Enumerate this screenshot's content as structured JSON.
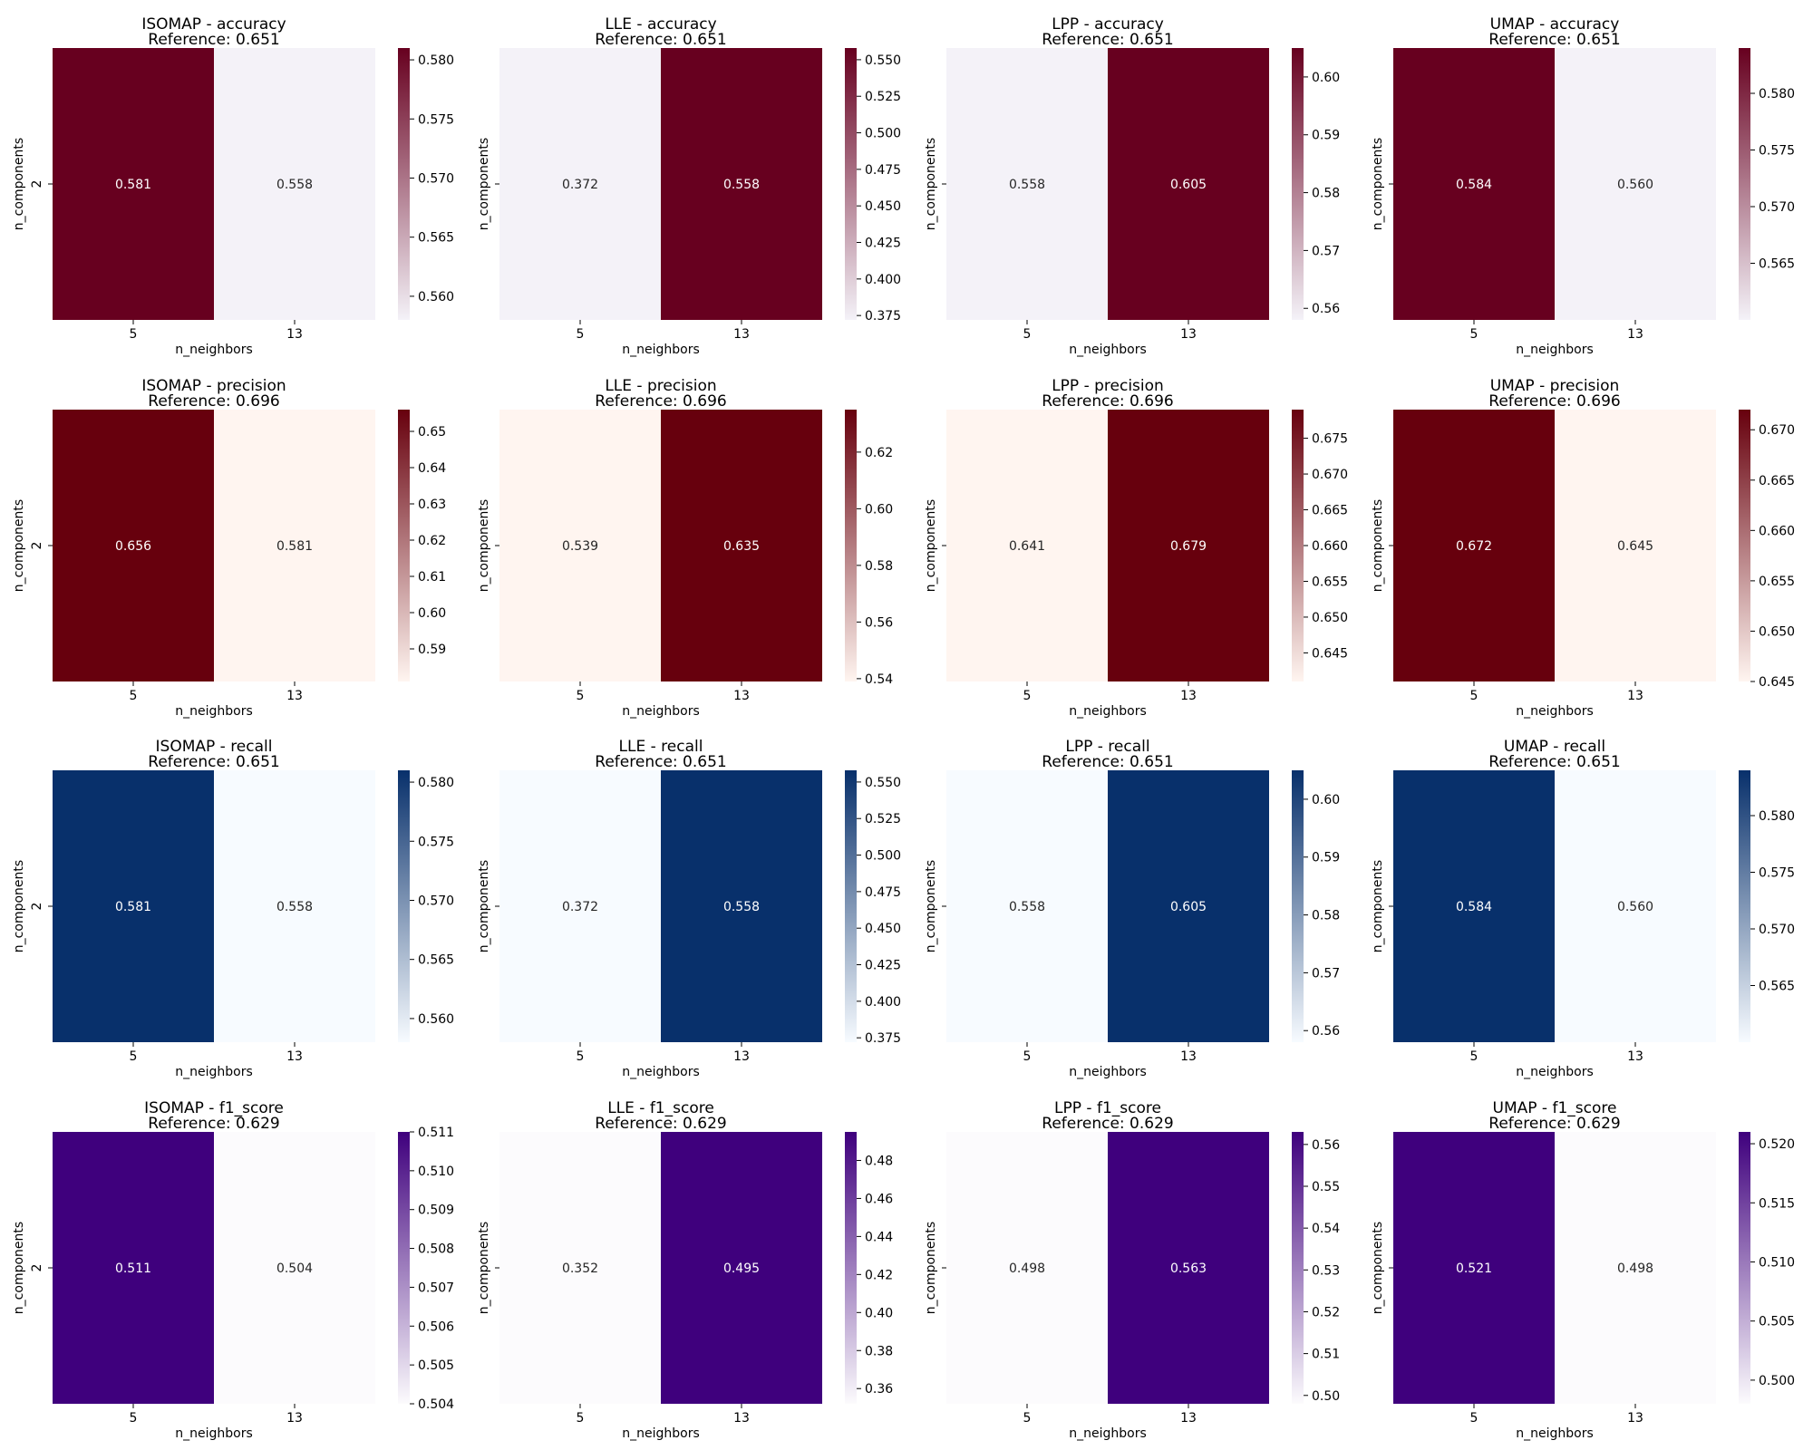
{
  "chart_data": [
    {
      "type": "heatmap",
      "method": "ISOMAP",
      "metric": "accuracy",
      "title": "ISOMAP - accuracy",
      "subtitle": "Reference: 0.651",
      "xlabel": "n_neighbors",
      "ylabel": "n_components",
      "x_categories": [
        "5",
        "13"
      ],
      "y_categories": [
        "2"
      ],
      "values": [
        [
          0.581,
          0.558
        ]
      ],
      "cell_labels": [
        "0.581",
        "0.558"
      ],
      "colormap": "RdPu",
      "low_color": "#f4f2f8",
      "high_color": "#67001f",
      "colorbar": {
        "ticks": [
          "0.560",
          "0.565",
          "0.570",
          "0.575",
          "0.580"
        ]
      }
    },
    {
      "type": "heatmap",
      "method": "LLE",
      "metric": "accuracy",
      "title": "LLE - accuracy",
      "subtitle": "Reference: 0.651",
      "xlabel": "n_neighbors",
      "ylabel": "n_components",
      "x_categories": [
        "5",
        "13"
      ],
      "y_categories": [
        ""
      ],
      "values": [
        [
          0.372,
          0.558
        ]
      ],
      "cell_labels": [
        "0.372",
        "0.558"
      ],
      "colormap": "RdPu",
      "low_color": "#f4f2f8",
      "high_color": "#67001f",
      "colorbar": {
        "ticks": [
          "0.375",
          "0.400",
          "0.425",
          "0.450",
          "0.475",
          "0.500",
          "0.525",
          "0.550"
        ]
      }
    },
    {
      "type": "heatmap",
      "method": "LPP",
      "metric": "accuracy",
      "title": "LPP - accuracy",
      "subtitle": "Reference: 0.651",
      "xlabel": "n_neighbors",
      "ylabel": "n_components",
      "x_categories": [
        "5",
        "13"
      ],
      "y_categories": [
        ""
      ],
      "values": [
        [
          0.558,
          0.605
        ]
      ],
      "cell_labels": [
        "0.558",
        "0.605"
      ],
      "colormap": "RdPu",
      "low_color": "#f4f2f8",
      "high_color": "#67001f",
      "colorbar": {
        "ticks": [
          "0.56",
          "0.57",
          "0.58",
          "0.59",
          "0.60"
        ]
      }
    },
    {
      "type": "heatmap",
      "method": "UMAP",
      "metric": "accuracy",
      "title": "UMAP - accuracy",
      "subtitle": "Reference: 0.651",
      "xlabel": "n_neighbors",
      "ylabel": "n_components",
      "x_categories": [
        "5",
        "13"
      ],
      "y_categories": [
        ""
      ],
      "values": [
        [
          0.584,
          0.56
        ]
      ],
      "cell_labels": [
        "0.584",
        "0.560"
      ],
      "colormap": "RdPu",
      "low_color": "#f4f2f8",
      "high_color": "#67001f",
      "colorbar": {
        "ticks": [
          "0.565",
          "0.570",
          "0.575",
          "0.580"
        ]
      }
    },
    {
      "type": "heatmap",
      "method": "ISOMAP",
      "metric": "precision",
      "title": "ISOMAP - precision",
      "subtitle": "Reference: 0.696",
      "xlabel": "n_neighbors",
      "ylabel": "n_components",
      "x_categories": [
        "5",
        "13"
      ],
      "y_categories": [
        "2"
      ],
      "values": [
        [
          0.656,
          0.581
        ]
      ],
      "cell_labels": [
        "0.656",
        "0.581"
      ],
      "colormap": "Reds",
      "low_color": "#fff5f0",
      "high_color": "#67000d",
      "colorbar": {
        "ticks": [
          "0.59",
          "0.60",
          "0.61",
          "0.62",
          "0.63",
          "0.64",
          "0.65"
        ]
      }
    },
    {
      "type": "heatmap",
      "method": "LLE",
      "metric": "precision",
      "title": "LLE - precision",
      "subtitle": "Reference: 0.696",
      "xlabel": "n_neighbors",
      "ylabel": "n_components",
      "x_categories": [
        "5",
        "13"
      ],
      "y_categories": [
        ""
      ],
      "values": [
        [
          0.539,
          0.635
        ]
      ],
      "cell_labels": [
        "0.539",
        "0.635"
      ],
      "colormap": "Reds",
      "low_color": "#fff5f0",
      "high_color": "#67000d",
      "colorbar": {
        "ticks": [
          "0.54",
          "0.56",
          "0.58",
          "0.60",
          "0.62"
        ]
      }
    },
    {
      "type": "heatmap",
      "method": "LPP",
      "metric": "precision",
      "title": "LPP - precision",
      "subtitle": "Reference: 0.696",
      "xlabel": "n_neighbors",
      "ylabel": "n_components",
      "x_categories": [
        "5",
        "13"
      ],
      "y_categories": [
        ""
      ],
      "values": [
        [
          0.641,
          0.679
        ]
      ],
      "cell_labels": [
        "0.641",
        "0.679"
      ],
      "colormap": "Reds",
      "low_color": "#fff5f0",
      "high_color": "#67000d",
      "colorbar": {
        "ticks": [
          "0.645",
          "0.650",
          "0.655",
          "0.660",
          "0.665",
          "0.670",
          "0.675"
        ]
      }
    },
    {
      "type": "heatmap",
      "method": "UMAP",
      "metric": "precision",
      "title": "UMAP - precision",
      "subtitle": "Reference: 0.696",
      "xlabel": "n_neighbors",
      "ylabel": "n_components",
      "x_categories": [
        "5",
        "13"
      ],
      "y_categories": [
        ""
      ],
      "values": [
        [
          0.672,
          0.645
        ]
      ],
      "cell_labels": [
        "0.672",
        "0.645"
      ],
      "colormap": "Reds",
      "low_color": "#fff5f0",
      "high_color": "#67000d",
      "colorbar": {
        "ticks": [
          "0.645",
          "0.650",
          "0.655",
          "0.660",
          "0.665",
          "0.670"
        ]
      }
    },
    {
      "type": "heatmap",
      "method": "ISOMAP",
      "metric": "recall",
      "title": "ISOMAP - recall",
      "subtitle": "Reference: 0.651",
      "xlabel": "n_neighbors",
      "ylabel": "n_components",
      "x_categories": [
        "5",
        "13"
      ],
      "y_categories": [
        "2"
      ],
      "values": [
        [
          0.581,
          0.558
        ]
      ],
      "cell_labels": [
        "0.581",
        "0.558"
      ],
      "colormap": "Blues",
      "low_color": "#f7fbff",
      "high_color": "#08306b",
      "colorbar": {
        "ticks": [
          "0.560",
          "0.565",
          "0.570",
          "0.575",
          "0.580"
        ]
      }
    },
    {
      "type": "heatmap",
      "method": "LLE",
      "metric": "recall",
      "title": "LLE - recall",
      "subtitle": "Reference: 0.651",
      "xlabel": "n_neighbors",
      "ylabel": "n_components",
      "x_categories": [
        "5",
        "13"
      ],
      "y_categories": [
        ""
      ],
      "values": [
        [
          0.372,
          0.558
        ]
      ],
      "cell_labels": [
        "0.372",
        "0.558"
      ],
      "colormap": "Blues",
      "low_color": "#f7fbff",
      "high_color": "#08306b",
      "colorbar": {
        "ticks": [
          "0.375",
          "0.400",
          "0.425",
          "0.450",
          "0.475",
          "0.500",
          "0.525",
          "0.550"
        ]
      }
    },
    {
      "type": "heatmap",
      "method": "LPP",
      "metric": "recall",
      "title": "LPP - recall",
      "subtitle": "Reference: 0.651",
      "xlabel": "n_neighbors",
      "ylabel": "n_components",
      "x_categories": [
        "5",
        "13"
      ],
      "y_categories": [
        ""
      ],
      "values": [
        [
          0.558,
          0.605
        ]
      ],
      "cell_labels": [
        "0.558",
        "0.605"
      ],
      "colormap": "Blues",
      "low_color": "#f7fbff",
      "high_color": "#08306b",
      "colorbar": {
        "ticks": [
          "0.56",
          "0.57",
          "0.58",
          "0.59",
          "0.60"
        ]
      }
    },
    {
      "type": "heatmap",
      "method": "UMAP",
      "metric": "recall",
      "title": "UMAP - recall",
      "subtitle": "Reference: 0.651",
      "xlabel": "n_neighbors",
      "ylabel": "n_components",
      "x_categories": [
        "5",
        "13"
      ],
      "y_categories": [
        ""
      ],
      "values": [
        [
          0.584,
          0.56
        ]
      ],
      "cell_labels": [
        "0.584",
        "0.560"
      ],
      "colormap": "Blues",
      "low_color": "#f7fbff",
      "high_color": "#08306b",
      "colorbar": {
        "ticks": [
          "0.565",
          "0.570",
          "0.575",
          "0.580"
        ]
      }
    },
    {
      "type": "heatmap",
      "method": "ISOMAP",
      "metric": "f1_score",
      "title": "ISOMAP - f1_score",
      "subtitle": "Reference: 0.629",
      "xlabel": "n_neighbors",
      "ylabel": "n_components",
      "x_categories": [
        "5",
        "13"
      ],
      "y_categories": [
        "2"
      ],
      "values": [
        [
          0.511,
          0.504
        ]
      ],
      "cell_labels": [
        "0.511",
        "0.504"
      ],
      "colormap": "Purples",
      "low_color": "#fcfbfd",
      "high_color": "#3f007d",
      "colorbar": {
        "ticks": [
          "0.504",
          "0.505",
          "0.506",
          "0.507",
          "0.508",
          "0.509",
          "0.510",
          "0.511"
        ]
      }
    },
    {
      "type": "heatmap",
      "method": "LLE",
      "metric": "f1_score",
      "title": "LLE - f1_score",
      "subtitle": "Reference: 0.629",
      "xlabel": "n_neighbors",
      "ylabel": "n_components",
      "x_categories": [
        "5",
        "13"
      ],
      "y_categories": [
        ""
      ],
      "values": [
        [
          0.352,
          0.495
        ]
      ],
      "cell_labels": [
        "0.352",
        "0.495"
      ],
      "colormap": "Purples",
      "low_color": "#fcfbfd",
      "high_color": "#3f007d",
      "colorbar": {
        "ticks": [
          "0.36",
          "0.38",
          "0.40",
          "0.42",
          "0.44",
          "0.46",
          "0.48"
        ]
      }
    },
    {
      "type": "heatmap",
      "method": "LPP",
      "metric": "f1_score",
      "title": "LPP - f1_score",
      "subtitle": "Reference: 0.629",
      "xlabel": "n_neighbors",
      "ylabel": "n_components",
      "x_categories": [
        "5",
        "13"
      ],
      "y_categories": [
        ""
      ],
      "values": [
        [
          0.498,
          0.563
        ]
      ],
      "cell_labels": [
        "0.498",
        "0.563"
      ],
      "colormap": "Purples",
      "low_color": "#fcfbfd",
      "high_color": "#3f007d",
      "colorbar": {
        "ticks": [
          "0.50",
          "0.51",
          "0.52",
          "0.53",
          "0.54",
          "0.55",
          "0.56"
        ]
      }
    },
    {
      "type": "heatmap",
      "method": "UMAP",
      "metric": "f1_score",
      "title": "UMAP - f1_score",
      "subtitle": "Reference: 0.629",
      "xlabel": "n_neighbors",
      "ylabel": "n_components",
      "x_categories": [
        "5",
        "13"
      ],
      "y_categories": [
        ""
      ],
      "values": [
        [
          0.521,
          0.498
        ]
      ],
      "cell_labels": [
        "0.521",
        "0.498"
      ],
      "colormap": "Purples",
      "low_color": "#fcfbfd",
      "high_color": "#3f007d",
      "colorbar": {
        "ticks": [
          "0.500",
          "0.505",
          "0.510",
          "0.515",
          "0.520"
        ]
      }
    }
  ]
}
